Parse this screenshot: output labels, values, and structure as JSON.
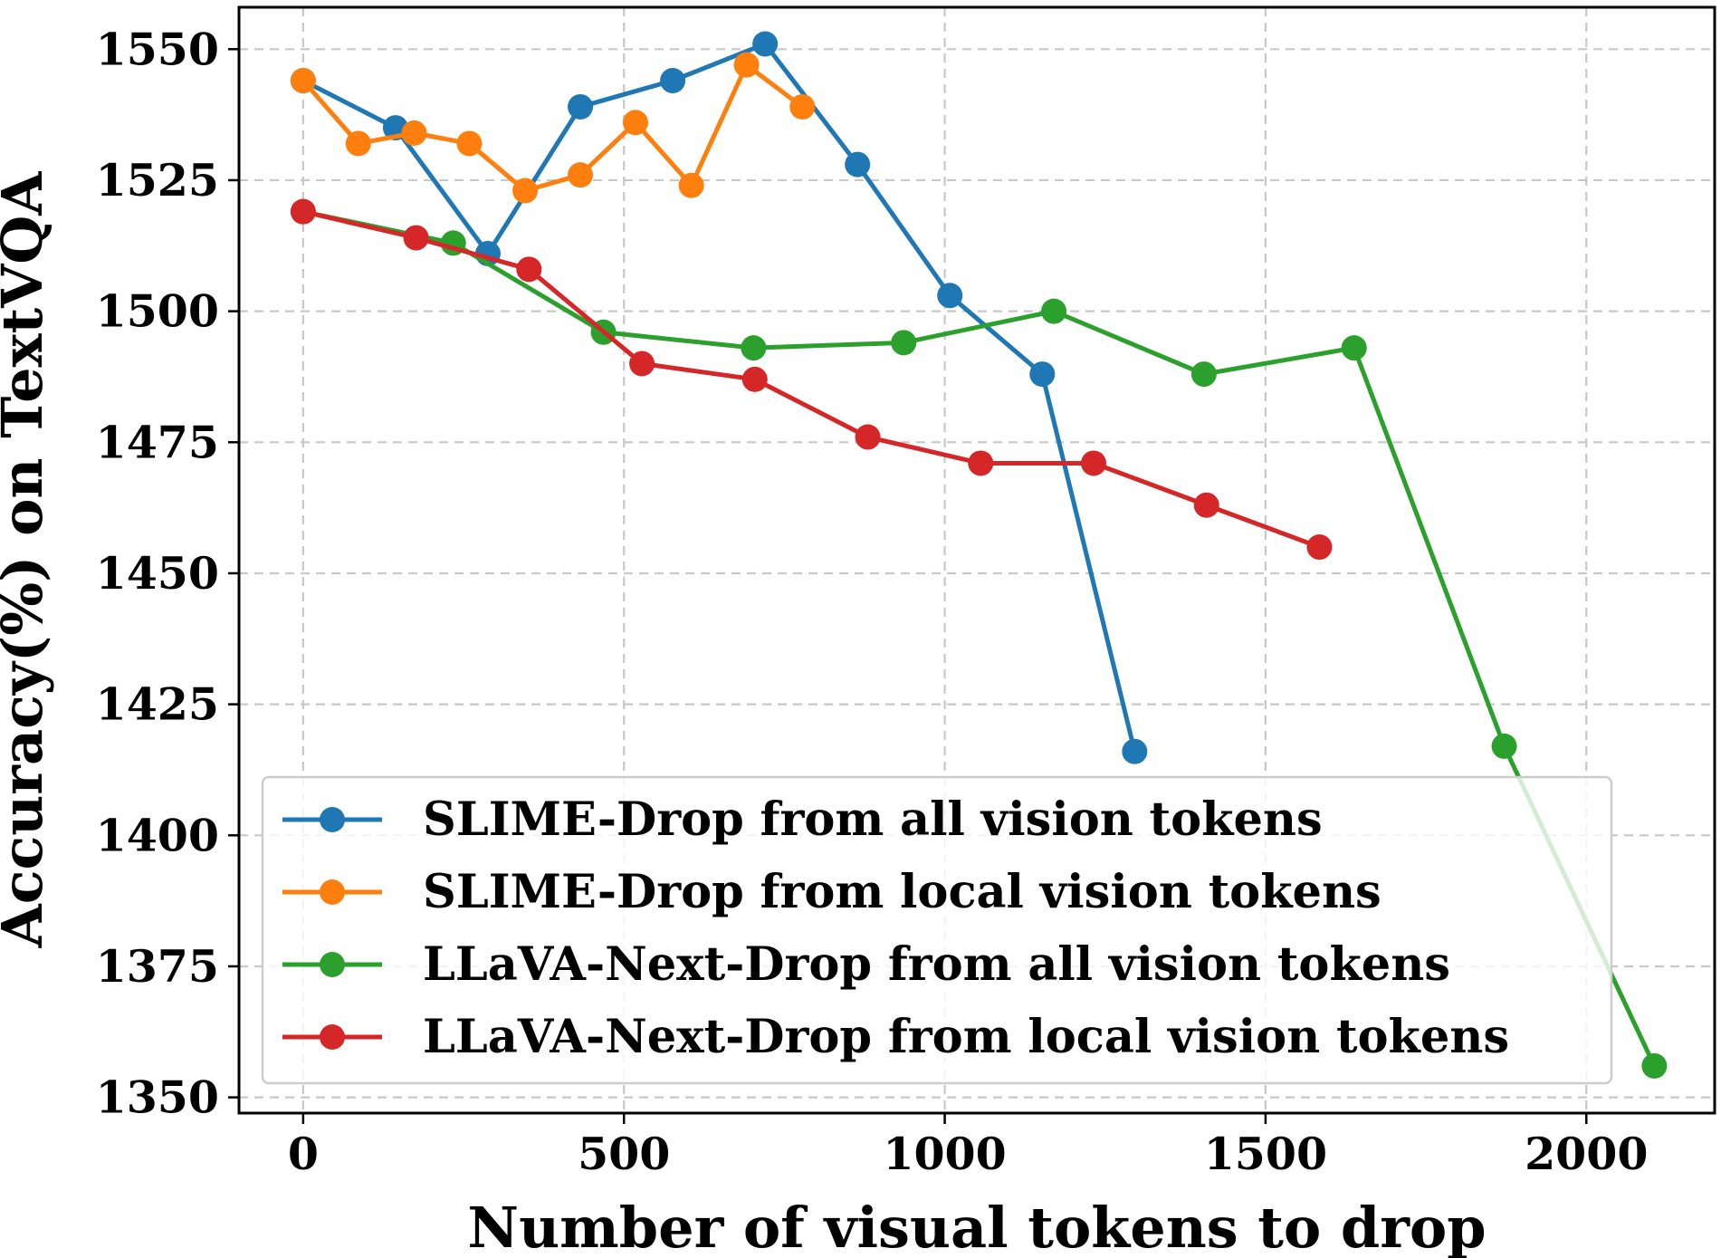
{
  "chart_data": {
    "type": "line",
    "title": "",
    "xlabel": "Number of visual tokens to drop",
    "ylabel": "Accuracy(%) on TextVQA",
    "xlim": [
      -100,
      2200
    ],
    "ylim": [
      1347,
      1558
    ],
    "xticks": [
      0,
      500,
      1000,
      1500,
      2000
    ],
    "yticks": [
      1350,
      1375,
      1400,
      1425,
      1450,
      1475,
      1500,
      1525,
      1550
    ],
    "grid": true,
    "legend_position": "lower-left",
    "series": [
      {
        "name": "SLIME-Drop from all vision tokens",
        "color": "#1f77b4",
        "x": [
          0,
          144,
          288,
          432,
          576,
          720,
          864,
          1008,
          1152,
          1296
        ],
        "y": [
          1544,
          1535,
          1511,
          1539,
          1544,
          1551,
          1528,
          1503,
          1488,
          1416
        ]
      },
      {
        "name": "SLIME-Drop from local vision tokens",
        "color": "#ff7f0e",
        "x": [
          0,
          86,
          173,
          259,
          346,
          432,
          518,
          605,
          691,
          778
        ],
        "y": [
          1544,
          1532,
          1534,
          1532,
          1523,
          1526,
          1536,
          1524,
          1547,
          1539
        ]
      },
      {
        "name": "LLaVA-Next-Drop from all vision tokens",
        "color": "#2ca02c",
        "x": [
          0,
          234,
          468,
          702,
          936,
          1170,
          1404,
          1638,
          1872,
          2106
        ],
        "y": [
          1519,
          1513,
          1496,
          1493,
          1494,
          1500,
          1488,
          1493,
          1417,
          1356
        ]
      },
      {
        "name": "LLaVA-Next-Drop from local vision tokens",
        "color": "#d62728",
        "x": [
          0,
          176,
          352,
          528,
          704,
          880,
          1056,
          1232,
          1408,
          1584
        ],
        "y": [
          1519,
          1514,
          1508,
          1490,
          1487,
          1476,
          1471,
          1471,
          1463,
          1455
        ]
      }
    ]
  }
}
